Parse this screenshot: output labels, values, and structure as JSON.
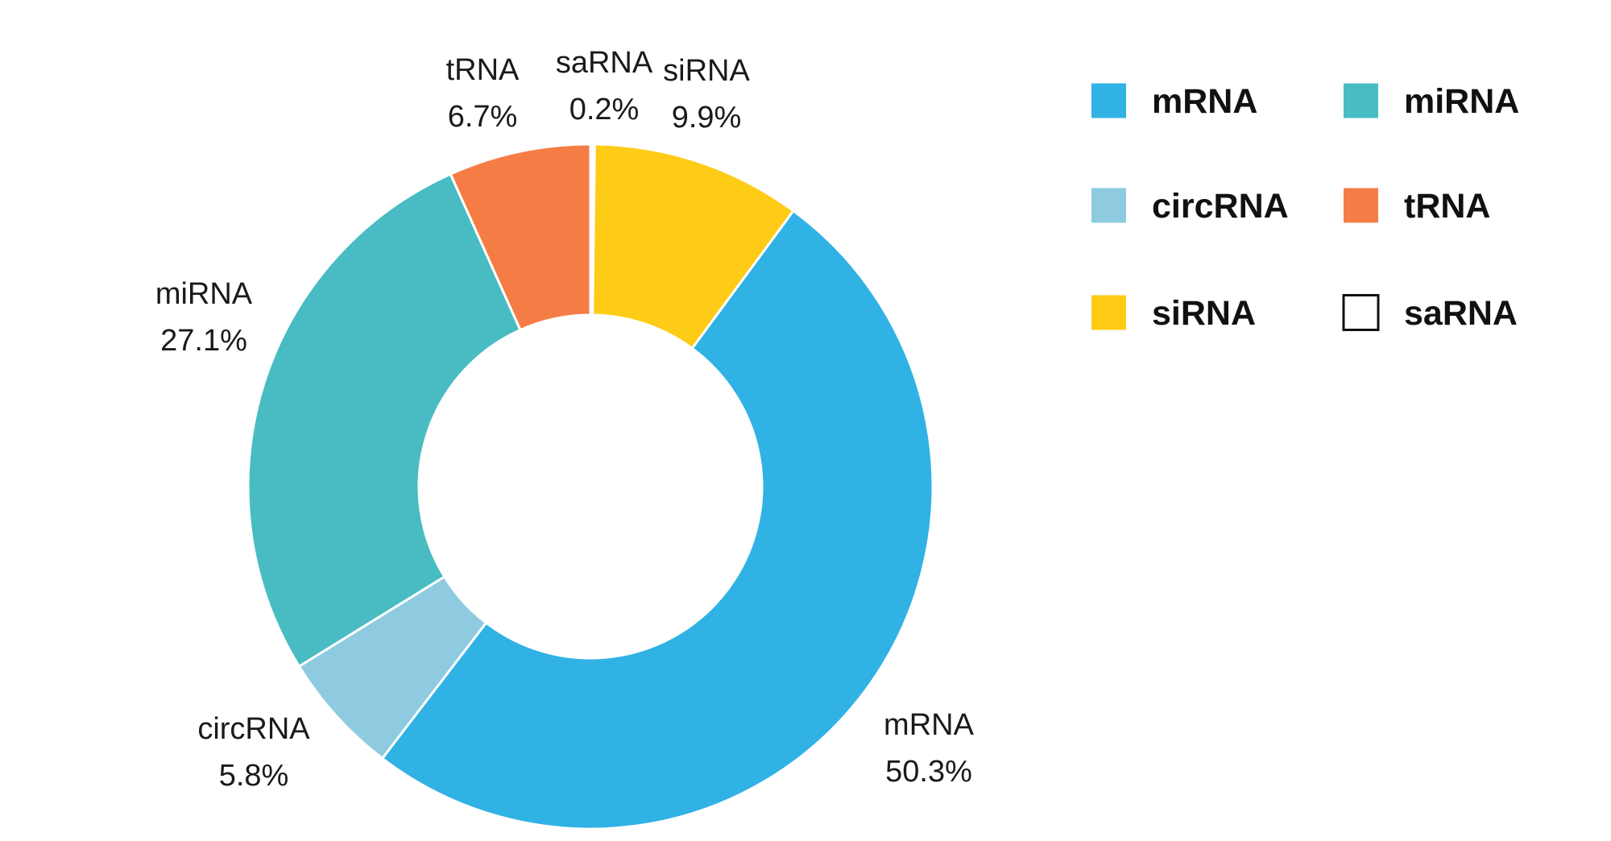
{
  "chart_data": {
    "type": "pie",
    "variant": "donut",
    "title": "",
    "legend_position": "top-right",
    "slices": [
      {
        "name": "saRNA",
        "value": 0.2,
        "label": "0.2%",
        "color": "#ffffff"
      },
      {
        "name": "siRNA",
        "value": 9.9,
        "label": "9.9%",
        "color": "#fecb16"
      },
      {
        "name": "mRNA",
        "value": 50.3,
        "label": "50.3%",
        "color": "#30b2e5"
      },
      {
        "name": "circRNA",
        "value": 5.8,
        "label": "5.8%",
        "color": "#8ecbe0"
      },
      {
        "name": "miRNA",
        "value": 27.1,
        "label": "27.1%",
        "color": "#48bcc2"
      },
      {
        "name": "tRNA",
        "value": 6.7,
        "label": "6.7%",
        "color": "#f57d45"
      }
    ],
    "legend": [
      "mRNA",
      "miRNA",
      "circRNA",
      "tRNA",
      "siRNA",
      "saRNA"
    ]
  }
}
